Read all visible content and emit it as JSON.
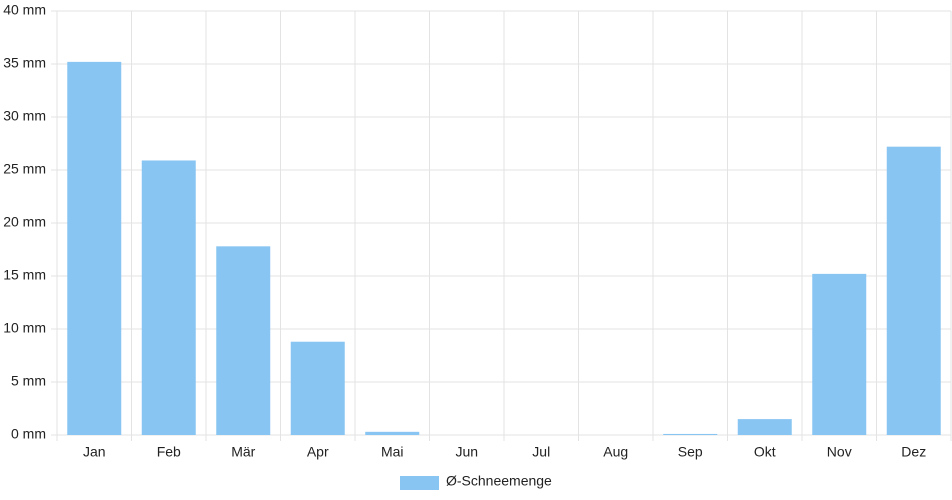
{
  "chart_data": {
    "type": "bar",
    "categories": [
      "Jan",
      "Feb",
      "Mär",
      "Apr",
      "Mai",
      "Jun",
      "Jul",
      "Aug",
      "Sep",
      "Okt",
      "Nov",
      "Dez"
    ],
    "series": [
      {
        "name": "Ø-Schneemenge",
        "color": "#88c5f2",
        "values": [
          35.2,
          25.9,
          17.8,
          8.8,
          0.3,
          0,
          0,
          0,
          0.1,
          1.5,
          15.2,
          27.2
        ]
      }
    ],
    "ylim": [
      0,
      40
    ],
    "yticks": [
      {
        "value": 0,
        "label": "0 mm"
      },
      {
        "value": 5,
        "label": "5 mm"
      },
      {
        "value": 10,
        "label": "10 mm"
      },
      {
        "value": 15,
        "label": "15 mm"
      },
      {
        "value": 20,
        "label": "20 mm"
      },
      {
        "value": 25,
        "label": "25 mm"
      },
      {
        "value": 30,
        "label": "30 mm"
      },
      {
        "value": 35,
        "label": "35 mm"
      },
      {
        "value": 40,
        "label": "40 mm"
      }
    ],
    "grid": true,
    "legend": "bottom"
  }
}
